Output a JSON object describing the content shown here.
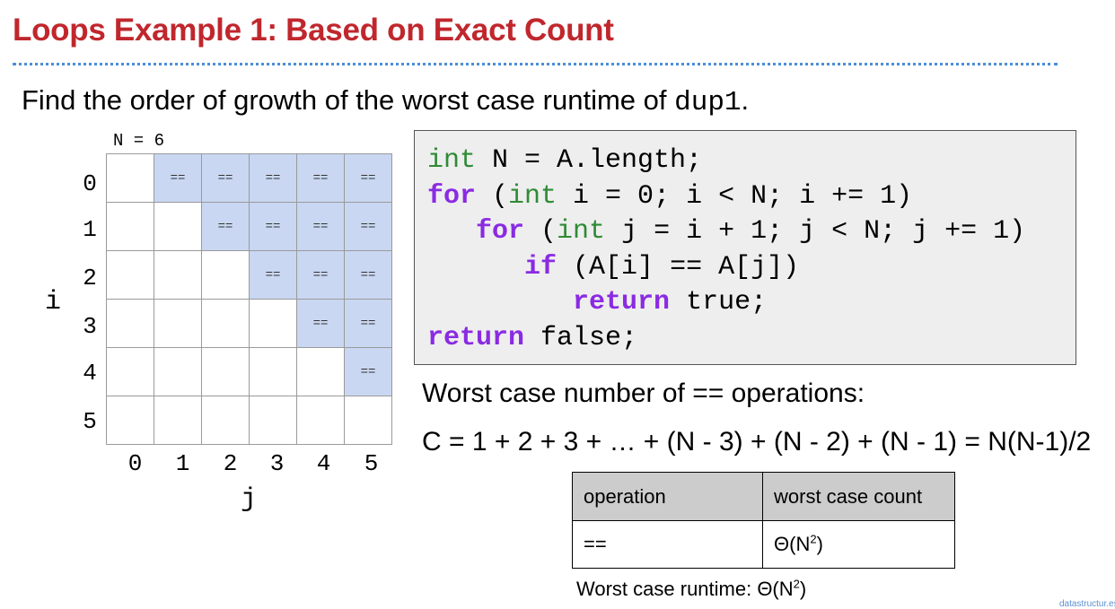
{
  "slide": {
    "title": "Loops Example 1: Based on Exact Count",
    "subtitle_prefix": "Find the order of growth of the worst case runtime of ",
    "subtitle_code": "dup1",
    "subtitle_suffix": "."
  },
  "grid": {
    "n_label": "N = 6",
    "cell_text": "==",
    "row_labels": [
      "0",
      "1",
      "2",
      "3",
      "4",
      "5"
    ],
    "col_labels": [
      "0",
      "1",
      "2",
      "3",
      "4",
      "5"
    ],
    "i_axis": "i",
    "j_axis": "j",
    "highlight_color": "#c9d7f2"
  },
  "code": {
    "line1_type": "int",
    "line1_rest": " N = A.length;",
    "line2_for": "for",
    "line2_a": " (",
    "line2_int": "int",
    "line2_rest": " i = 0; i < N; i += 1)",
    "line3_indent": "   ",
    "line3_for": "for",
    "line3_a": " (",
    "line3_int": "int",
    "line3_rest": " j = i + 1; j < N; j += 1)",
    "line4_indent": "      ",
    "line4_if": "if",
    "line4_rest": " (A[i] == A[j])",
    "line5_indent": "         ",
    "line5_return": "return",
    "line5_rest": " true;",
    "line6_return": "return",
    "line6_rest": " false;"
  },
  "analysis": {
    "worst_case_label": "Worst case number of == operations:",
    "formula": "C = 1 + 2 + 3 + … + (N - 3) + (N - 2) + (N - 1) = N(N-1)/2"
  },
  "table": {
    "header_op": "operation",
    "header_count": "worst case count",
    "row_op": "==",
    "row_count_base": "Θ(N",
    "row_count_exp": "2",
    "row_count_close": ")"
  },
  "runtime": {
    "prefix": "Worst case runtime: Θ(N",
    "exp": "2",
    "close": ")"
  },
  "footer": "datastructur.es",
  "colors": {
    "title": "#c0272d",
    "rule": "#4a8fd6",
    "keyword_type": "#2e8b34",
    "keyword_control": "#8a2be2"
  }
}
